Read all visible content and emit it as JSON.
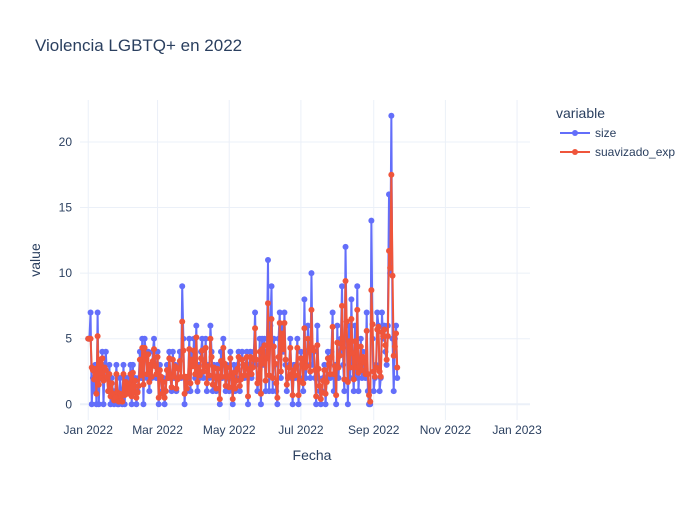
{
  "colors": {
    "size": "#636efa",
    "suavizado_exp": "#ef553b",
    "grid": "#ebf0f8",
    "text": "#2a3f5f",
    "zeroline": "#ebf0f8"
  },
  "chart_data": {
    "type": "line",
    "title": "Violencia LGBTQ+ en 2022",
    "xlabel": "Fecha",
    "ylabel": "value",
    "legend_title": "variable",
    "legend_position": "top-right",
    "grid": true,
    "x_range": [
      "2021-12-25",
      "2023-01-12"
    ],
    "ylim": [
      -1.2,
      23.2
    ],
    "y_ticks": [
      0,
      5,
      10,
      15,
      20
    ],
    "x_ticks": [
      {
        "date": "2022-01-01",
        "label": "Jan 2022"
      },
      {
        "date": "2022-03-01",
        "label": "Mar 2022"
      },
      {
        "date": "2022-05-01",
        "label": "May 2022"
      },
      {
        "date": "2022-07-01",
        "label": "Jul 2022"
      },
      {
        "date": "2022-09-01",
        "label": "Sep 2022"
      },
      {
        "date": "2022-11-01",
        "label": "Nov 2022"
      },
      {
        "date": "2023-01-01",
        "label": "Jan 2023"
      }
    ],
    "x_start": "2022-01-01",
    "series": [
      {
        "name": "size",
        "values": [
          5,
          5,
          7,
          0,
          2,
          1,
          3,
          0,
          7,
          0,
          3,
          2,
          4,
          0,
          3,
          4,
          2,
          1,
          3,
          0,
          2,
          1,
          0,
          1,
          3,
          0,
          0,
          2,
          1,
          0,
          3,
          0,
          2,
          1,
          2,
          1,
          3,
          0,
          3,
          1,
          2,
          0,
          1,
          2,
          4,
          2,
          5,
          0,
          5,
          4,
          2,
          4,
          1,
          3,
          2,
          4,
          5,
          3,
          2,
          4,
          0,
          3,
          2,
          1,
          2,
          0,
          1,
          3,
          2,
          4,
          2,
          1,
          4,
          2,
          3,
          1,
          2,
          3,
          4,
          2,
          9,
          5,
          0,
          2,
          1,
          2,
          5,
          1,
          4,
          3,
          5,
          2,
          6,
          1,
          3,
          2,
          4,
          5,
          2,
          3,
          5,
          1,
          3,
          2,
          6,
          4,
          1,
          3,
          2,
          1,
          3,
          2,
          0,
          4,
          2,
          5,
          3,
          1,
          3,
          2,
          1,
          4,
          2,
          0,
          3,
          1,
          2,
          3,
          4,
          1,
          2,
          4,
          3,
          2,
          3,
          4,
          0,
          3,
          4,
          2,
          3,
          4,
          7,
          3,
          1,
          2,
          5,
          0,
          5,
          3,
          5,
          1,
          4,
          11,
          1,
          6,
          9,
          1,
          5,
          3,
          1,
          0,
          5,
          7,
          2,
          6,
          4,
          7,
          3,
          1,
          2,
          3,
          5,
          2,
          0,
          3,
          2,
          3,
          5,
          0,
          2,
          4,
          3,
          1,
          8,
          2,
          3,
          6,
          4,
          2,
          10,
          3,
          4,
          2,
          0,
          6,
          2,
          1,
          0,
          1,
          2,
          3,
          0,
          2,
          4,
          3,
          2,
          4,
          7,
          1,
          3,
          0,
          6,
          2,
          4,
          5,
          9,
          3,
          1,
          12,
          5,
          0,
          6,
          2,
          8,
          3,
          1,
          6,
          2,
          9,
          1,
          3,
          5,
          2,
          4,
          3,
          2,
          7,
          1,
          0,
          0,
          14,
          5,
          1,
          2,
          3,
          7,
          6,
          1,
          2,
          7,
          5,
          6,
          4,
          3,
          6,
          16,
          10,
          22,
          5,
          1,
          5,
          6,
          2
        ]
      },
      {
        "name": "suavizado_exp",
        "values": [
          5,
          5,
          5,
          2.8,
          2.6,
          1.9,
          2.7,
          0.8,
          5.2,
          1.5,
          3.4,
          2,
          3.5,
          1.8,
          2.8,
          2.6,
          2.1,
          1,
          2.3,
          0.6,
          1.6,
          0.8,
          0.3,
          0.5,
          2.3,
          0.9,
          0.2,
          0.8,
          0.6,
          0.2,
          2.3,
          0.7,
          1.7,
          0.8,
          1.6,
          0.8,
          2.3,
          0.6,
          2.4,
          0.9,
          1.8,
          0.5,
          0.9,
          1.4,
          3.4,
          2.2,
          4.3,
          1.5,
          4.3,
          3.8,
          2.3,
          3.8,
          1.7,
          3,
          2.1,
          3.3,
          4.2,
          2.9,
          2.3,
          3.6,
          0.5,
          2.6,
          2.1,
          0.8,
          1.7,
          0.5,
          1,
          2.6,
          2,
          3.5,
          2.2,
          1.3,
          3.4,
          2.1,
          2.9,
          1.2,
          1.9,
          2.7,
          3.3,
          2.1,
          6.3,
          4.1,
          0.8,
          2.1,
          1.2,
          2.1,
          4.2,
          1.6,
          3.4,
          2.9,
          4.1,
          2.3,
          5.1,
          1.7,
          2.8,
          2.2,
          3.5,
          4.1,
          2.5,
          2.9,
          4.3,
          1.6,
          2.9,
          2.2,
          5,
          3.6,
          1.5,
          2.8,
          2.1,
          1.2,
          2.7,
          2.1,
          0.4,
          3.3,
          2.1,
          4.3,
          3.1,
          1.4,
          2.8,
          2.1,
          1.3,
          3.5,
          2.2,
          0.4,
          2.4,
          1.2,
          1.8,
          2.7,
          3.6,
          1.4,
          1.9,
          3.4,
          3,
          2.2,
          2.8,
          3.6,
          0.6,
          2.6,
          3.6,
          2.3,
          2.8,
          3.4,
          5.8,
          3.4,
          1.6,
          1.9,
          4,
          0.8,
          4.2,
          3.1,
          4.5,
          1.8,
          3.5,
          7.7,
          2.2,
          5,
          6.5,
          2,
          4.4,
          3.1,
          1.6,
          0.5,
          3.6,
          6.2,
          2.5,
          5.4,
          4.2,
          6.2,
          3.4,
          1.5,
          2,
          2.8,
          4.3,
          2.3,
          0.7,
          2.6,
          2.2,
          2.9,
          4.3,
          0.7,
          1.8,
          3.5,
          3.1,
          1.6,
          5.8,
          2.8,
          2.9,
          5,
          4.2,
          2.5,
          7.2,
          4.3,
          4.1,
          2.6,
          0.6,
          4.5,
          2.7,
          1.4,
          0.4,
          0.9,
          1.8,
          2.6,
          0.8,
          1.7,
          3.5,
          3.1,
          2.3,
          3.6,
          5.9,
          2.3,
          2.9,
          0.7,
          4.7,
          2.8,
          3.7,
          4.6,
          7.5,
          4.3,
          1.9,
          9.4,
          6.3,
          1.7,
          4.8,
          2.8,
          6.5,
          3.9,
          1.9,
          4.8,
          2.8,
          7.2,
          2.4,
          2.9,
          4.4,
          2.6,
          3.6,
          3.2,
          2.3,
          5.6,
          2.3,
          0.7,
          0.2,
          8.7,
          6.1,
          2.5,
          2.1,
          2.8,
          5.7,
          5.9,
          2.5,
          2.1,
          5.5,
          5.2,
          5.7,
          4.5,
          3.4,
          5.2,
          11.7,
          10.4,
          17.5,
          9.8,
          3.7,
          4.4,
          5.4,
          2.8
        ]
      }
    ]
  }
}
